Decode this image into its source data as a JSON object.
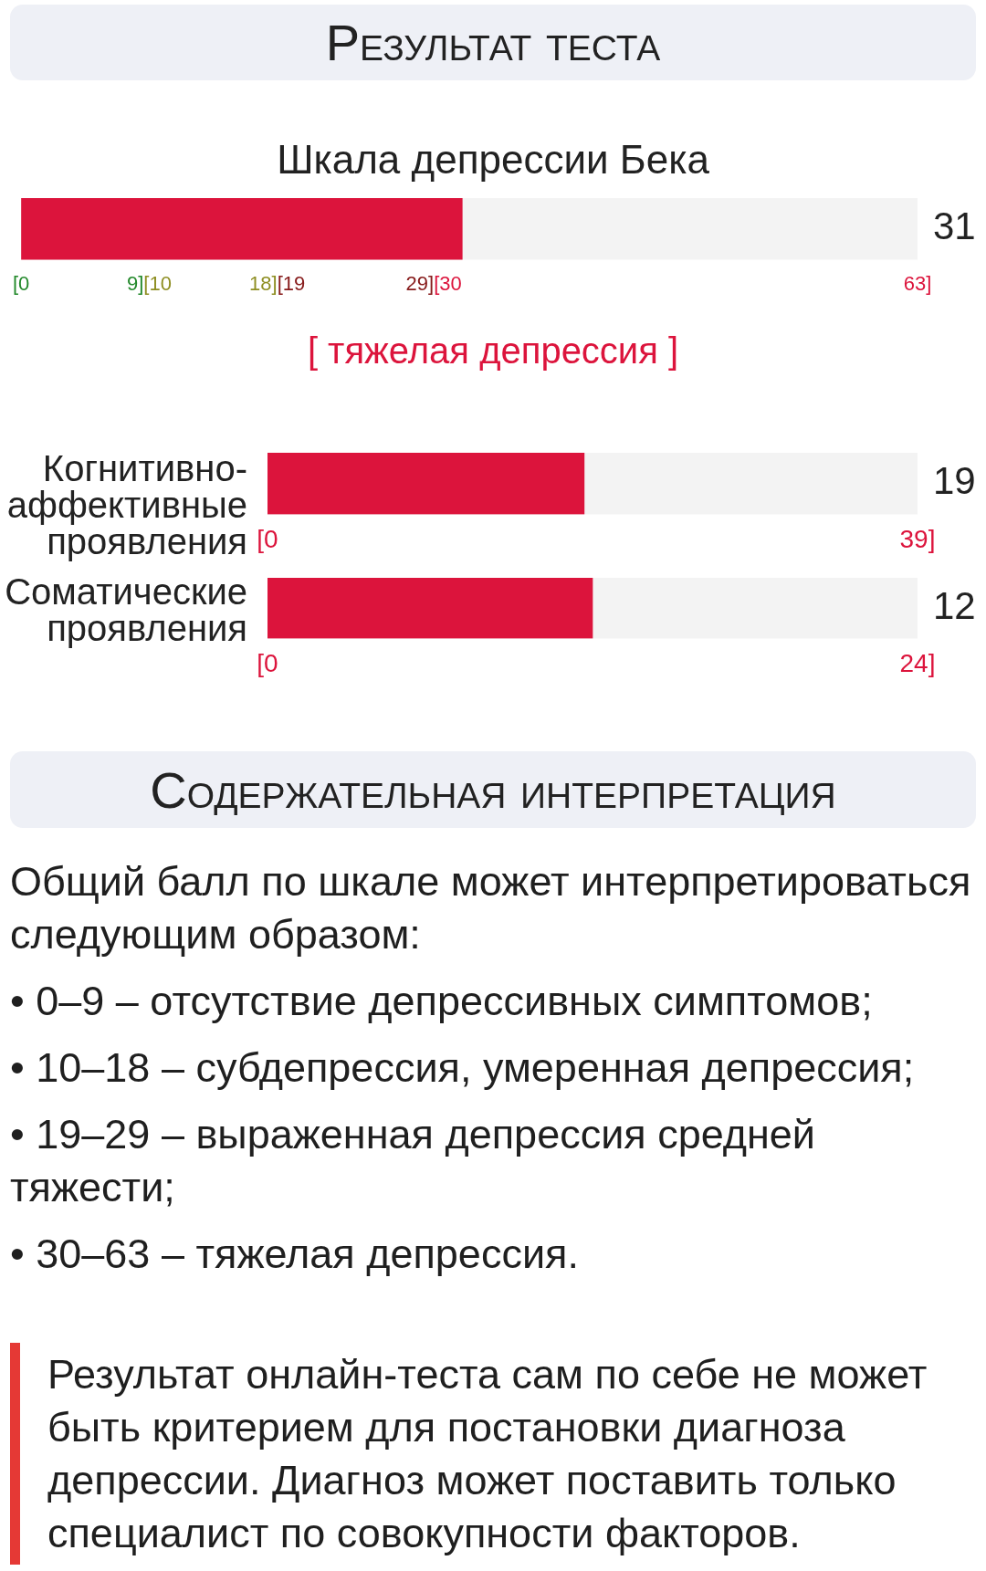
{
  "chart_data": [
    {
      "type": "bar",
      "title": "Результат теста",
      "subtitle": "Шкала депрессии Бека",
      "orientation": "horizontal",
      "categories": [
        null
      ],
      "values": [
        31
      ],
      "color": "#dc143c",
      "xlim": [
        0,
        63
      ],
      "xticks": [
        {
          "value": 0,
          "label": "[0"
        },
        {
          "value": 9,
          "label": "9][10"
        },
        {
          "value": 18,
          "label": "18][19"
        },
        {
          "value": 29,
          "label": "29][30"
        },
        {
          "value": 63,
          "label": "63]"
        }
      ],
      "annotations": [
        "31",
        "[ тяжелая депрессия ]"
      ]
    },
    {
      "type": "bar",
      "orientation": "horizontal",
      "categories": [
        "Когнитивно-аффективные проявления"
      ],
      "values": [
        19
      ],
      "color": "#dc143c",
      "xlim": [
        0,
        39
      ],
      "xticks": [
        {
          "value": 0,
          "label": "[0"
        },
        {
          "value": 39,
          "label": "39]"
        }
      ],
      "annotations": [
        "19"
      ]
    },
    {
      "type": "bar",
      "orientation": "horizontal",
      "categories": [
        "Соматические проявления"
      ],
      "values": [
        12
      ],
      "color": "#dc143c",
      "xlim": [
        0,
        24
      ],
      "xticks": [
        {
          "value": 0,
          "label": "[0"
        },
        {
          "value": 24,
          "label": "24]"
        }
      ],
      "annotations": [
        "12"
      ]
    },
    {
      "type": "other",
      "title": "Содержательная интерпретация",
      "annotations": [
        "Общий балл по шкале может интерпретироваться следующим образом:",
        "• 0–9 – отсутствие депрессивных симптомов;",
        "• 10–18 – субдепрессия, умеренная депрессия;",
        "• 19–29 – выраженная депрессия средней тяжести;",
        "• 30–63 – тяжелая депрессия.",
        "Результат онлайн-теста сам по себе не может быть критерием для постановки диагноза депрессии. Диагноз может поставить только специалист по совокупности факторов."
      ]
    }
  ]
}
